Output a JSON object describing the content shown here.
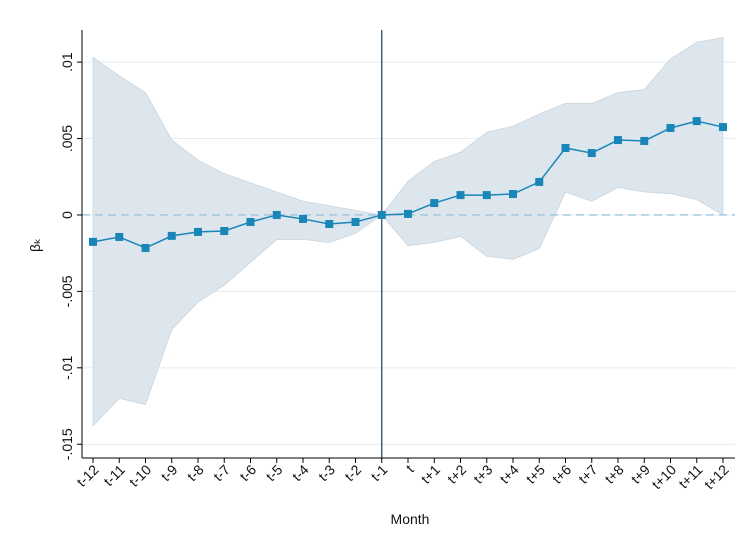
{
  "chart_data": {
    "type": "line",
    "xlabel": "Month",
    "ylabel": "βₖ",
    "categories": [
      "t-12",
      "t-11",
      "t-10",
      "t-9",
      "t-8",
      "t-7",
      "t-6",
      "t-5",
      "t-4",
      "t-3",
      "t-2",
      "t-1",
      "t",
      "t+1",
      "t+2",
      "t+3",
      "t+4",
      "t+5",
      "t+6",
      "t+7",
      "t+8",
      "t+9",
      "t+10",
      "t+11",
      "t+12"
    ],
    "values": [
      -0.00176,
      -0.00144,
      -0.00216,
      -0.00137,
      -0.00111,
      -0.00105,
      -0.00046,
      0,
      -0.00026,
      -0.00059,
      -0.00046,
      0,
      7e-05,
      0.00078,
      0.0013,
      0.0013,
      0.00137,
      0.00216,
      0.00438,
      0.00405,
      0.0049,
      0.00484,
      0.00569,
      0.00614,
      0.00575
    ],
    "ci_upper": [
      0.0103,
      0.0091,
      0.008,
      0.0049,
      0.0036,
      0.0027,
      0.0021,
      0.0015,
      0.0009,
      0.0006,
      0.0003,
      0,
      0.0022,
      0.0035,
      0.0041,
      0.0054,
      0.0058,
      0.0066,
      0.0073,
      0.0073,
      0.008,
      0.0082,
      0.0102,
      0.0113,
      0.0116
    ],
    "ci_lower": [
      -0.0138,
      -0.012,
      -0.0124,
      -0.0075,
      -0.0057,
      -0.0046,
      -0.0031,
      -0.0016,
      -0.0016,
      -0.0018,
      -0.0012,
      0,
      -0.002,
      -0.0018,
      -0.0014,
      -0.0027,
      -0.0029,
      -0.0022,
      0.0015,
      0.0009,
      0.0018,
      0.0015,
      0.0014,
      0.001,
      0
    ],
    "color": "#1a86b8",
    "band_color": "#dde6ed",
    "xline": "t-1",
    "yline": 0,
    "ylim": [
      -0.0159,
      0.0121
    ],
    "yticks": [
      {
        "value": -0.015,
        "label": "-.015"
      },
      {
        "value": -0.01,
        "label": "-.01"
      },
      {
        "value": -0.005,
        "label": "-.005"
      },
      0,
      {
        "value": 0.005,
        "label": ".005"
      },
      {
        "value": 0.01,
        "label": ".01"
      }
    ],
    "grid": true
  }
}
